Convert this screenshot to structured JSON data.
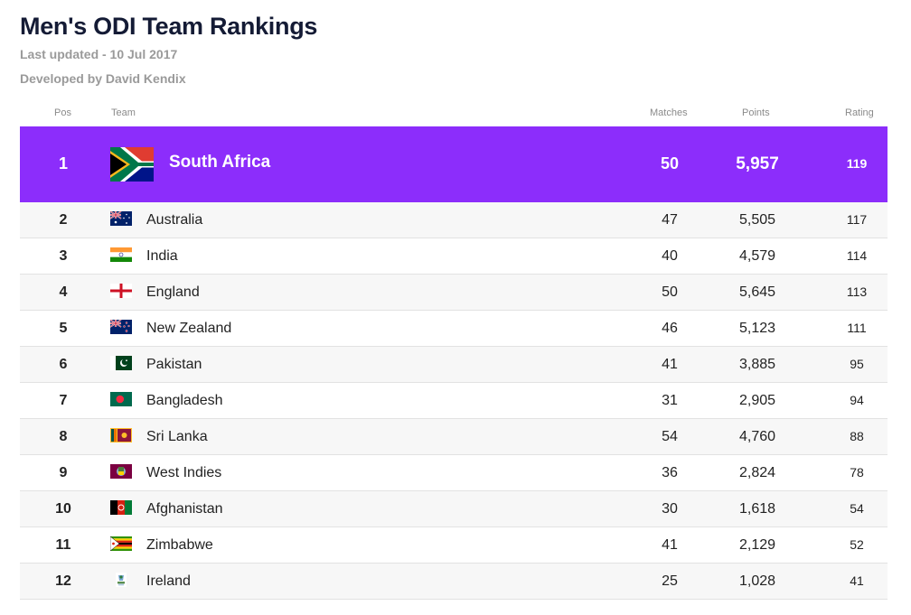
{
  "page": {
    "title": "Men's ODI Team Rankings",
    "last_updated": "Last updated - 10 Jul 2017",
    "developer": "Developed by David Kendix"
  },
  "table": {
    "headers": {
      "pos": "Pos",
      "team": "Team",
      "matches": "Matches",
      "points": "Points",
      "rating": "Rating"
    },
    "highlight_color": "#8c2dfb",
    "top": {
      "pos": "1",
      "team": "South Africa",
      "flag": "south-africa-flag-icon",
      "matches": "50",
      "points": "5,957",
      "rating": "119"
    },
    "rows": [
      {
        "pos": "2",
        "team": "Australia",
        "flag": "australia-flag-icon",
        "matches": "47",
        "points": "5,505",
        "rating": "117"
      },
      {
        "pos": "3",
        "team": "India",
        "flag": "india-flag-icon",
        "matches": "40",
        "points": "4,579",
        "rating": "114"
      },
      {
        "pos": "4",
        "team": "England",
        "flag": "england-flag-icon",
        "matches": "50",
        "points": "5,645",
        "rating": "113"
      },
      {
        "pos": "5",
        "team": "New Zealand",
        "flag": "new-zealand-flag-icon",
        "matches": "46",
        "points": "5,123",
        "rating": "111"
      },
      {
        "pos": "6",
        "team": "Pakistan",
        "flag": "pakistan-flag-icon",
        "matches": "41",
        "points": "3,885",
        "rating": "95"
      },
      {
        "pos": "7",
        "team": "Bangladesh",
        "flag": "bangladesh-flag-icon",
        "matches": "31",
        "points": "2,905",
        "rating": "94"
      },
      {
        "pos": "8",
        "team": "Sri Lanka",
        "flag": "sri-lanka-flag-icon",
        "matches": "54",
        "points": "4,760",
        "rating": "88"
      },
      {
        "pos": "9",
        "team": "West Indies",
        "flag": "west-indies-flag-icon",
        "matches": "36",
        "points": "2,824",
        "rating": "78"
      },
      {
        "pos": "10",
        "team": "Afghanistan",
        "flag": "afghanistan-flag-icon",
        "matches": "30",
        "points": "1,618",
        "rating": "54"
      },
      {
        "pos": "11",
        "team": "Zimbabwe",
        "flag": "zimbabwe-flag-icon",
        "matches": "41",
        "points": "2,129",
        "rating": "52"
      },
      {
        "pos": "12",
        "team": "Ireland",
        "flag": "ireland-flag-icon",
        "matches": "25",
        "points": "1,028",
        "rating": "41"
      }
    ]
  }
}
